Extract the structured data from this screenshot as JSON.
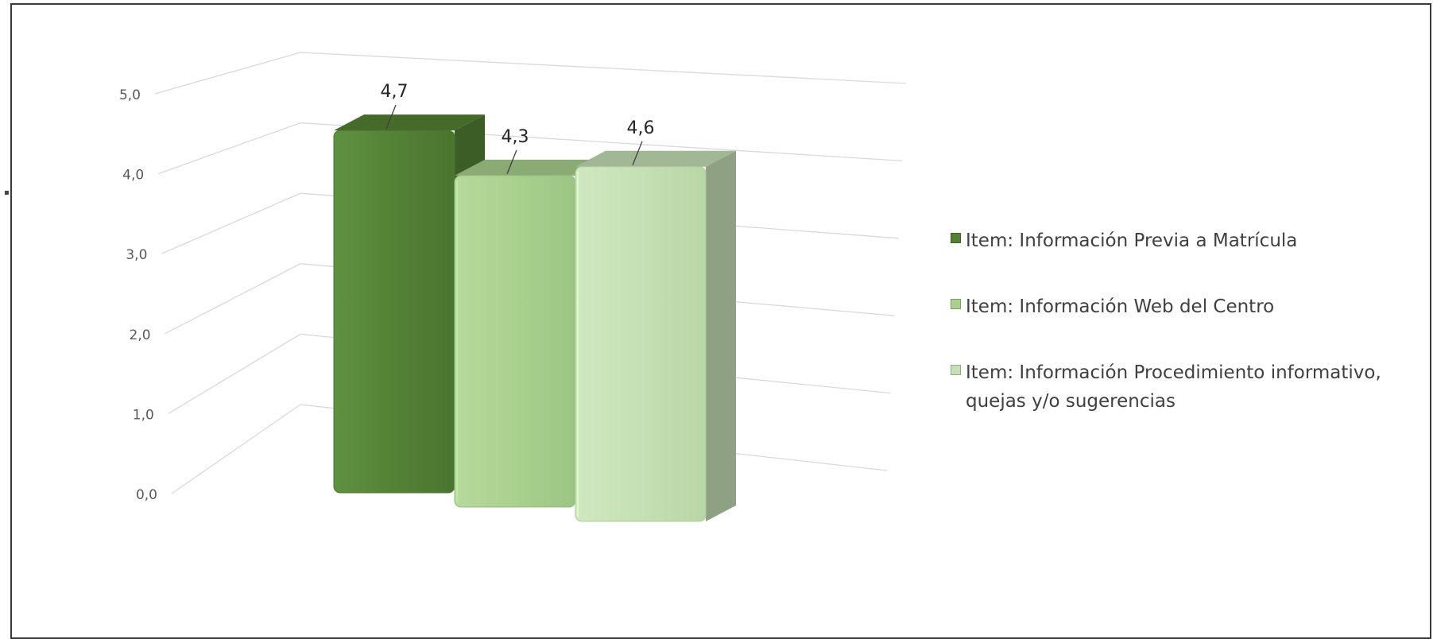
{
  "chart_data": {
    "type": "bar",
    "title": "",
    "xlabel": "",
    "ylabel": "",
    "ylim": [
      0,
      5
    ],
    "yticks": [
      "0,0",
      "1,0",
      "2,0",
      "3,0",
      "4,0",
      "5,0"
    ],
    "grid": true,
    "legend_position": "right",
    "style": "3d-column",
    "series": [
      {
        "name": "Item: Información Previa a Matrícula",
        "value": 4.7,
        "label": "4,7",
        "color": "#548235"
      },
      {
        "name": "Item: Información Web del Centro",
        "value": 4.3,
        "label": "4,3",
        "color": "#a9d18e"
      },
      {
        "name": "Item: Información Procedimiento informativo, quejas y/o sugerencias",
        "value": 4.6,
        "label": "4,6",
        "color": "#c5e0b4"
      }
    ]
  }
}
